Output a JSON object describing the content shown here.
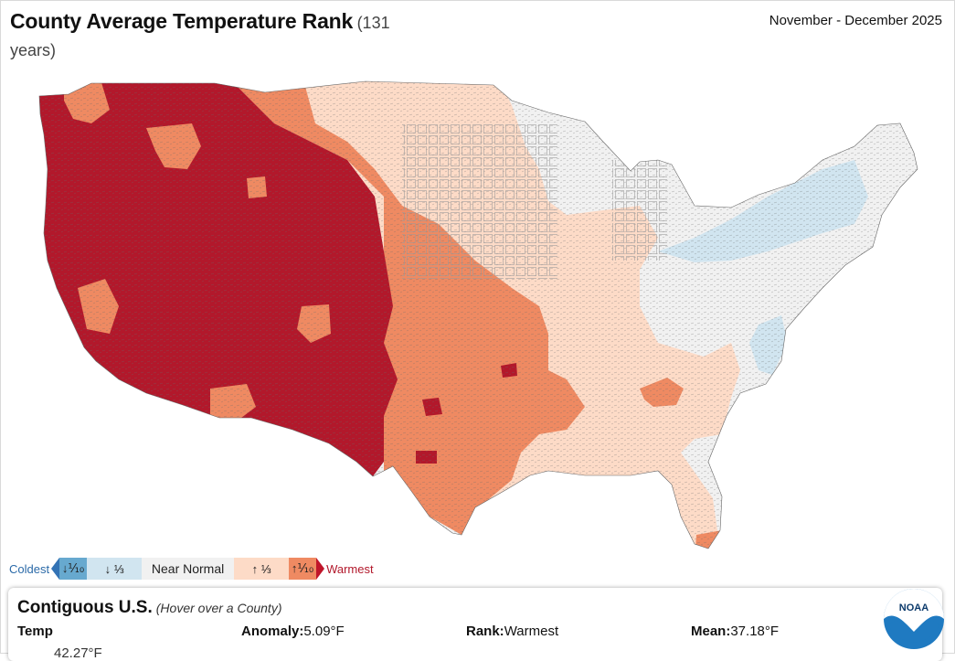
{
  "header": {
    "title": "County Average Temperature Rank",
    "subtitle": "(131 years)",
    "date_range": "November - December 2025"
  },
  "colors": {
    "record_warm": "#b2182b",
    "much_above": "#ef8a62",
    "above": "#fddbc7",
    "near_normal": "#f1f1f1",
    "below": "#d1e5f0",
    "much_below": "#67a9cf",
    "coldest_text": "#2b6aa8",
    "warmest_text": "#b2182b"
  },
  "legend": {
    "coldest": "Coldest",
    "items": [
      {
        "label": "↓⅒",
        "color": "#67a9cf"
      },
      {
        "label": "↓ ⅓",
        "color": "#d1e5f0"
      },
      {
        "label": "Near Normal",
        "color": "#f1f1f1"
      },
      {
        "label": "↑ ⅓",
        "color": "#fddbc7"
      },
      {
        "label": "↑⅒",
        "color": "#ef8a62"
      }
    ],
    "warmest": "Warmest"
  },
  "info": {
    "region": "Contiguous U.S.",
    "hint": "(Hover over a County)",
    "param_label": "Temp",
    "anomaly_label": "Anomaly:",
    "anomaly_value": "5.09°F",
    "rank_label": "Rank:",
    "rank_value": "Warmest",
    "mean_label": "Mean:",
    "mean_value": "37.18°F",
    "clipped_value": "42.27°F"
  },
  "logo": {
    "text": "NOAA"
  }
}
